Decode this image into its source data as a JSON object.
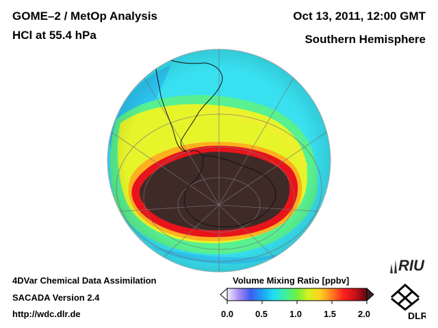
{
  "header": {
    "title_line1": "GOME–2 / MetOp Analysis",
    "title_line2": "HCl at 55.4 hPa",
    "date": "Oct 13, 2011, 12:00 GMT",
    "region": "Southern Hemisphere"
  },
  "footer": {
    "line1": "4DVar Chemical Data Assimilation",
    "line2": "SACADA Version 2.4",
    "line3": "http://wdc.dlr.de"
  },
  "colorbar": {
    "title": "Volume Mixing Ratio [ppbv]",
    "min": 0.0,
    "max": 2.0,
    "ticks": [
      "0.0",
      "0.5",
      "1.0",
      "1.5",
      "2.0"
    ],
    "colors": [
      "#f4f0ff",
      "#a98cf2",
      "#3f5cf2",
      "#1fa0f5",
      "#20e0f0",
      "#40f0a0",
      "#70f040",
      "#d8f020",
      "#ffd020",
      "#ff8020",
      "#ff2020",
      "#c81018",
      "#600810"
    ]
  },
  "map": {
    "projection": "orthographic",
    "hemisphere": "south",
    "vortex_color": "#3e2a27",
    "vortex_edge_color": "#e8141c",
    "collar_color": "#f4f020",
    "background_field_color": "#38e0f0"
  },
  "logos": {
    "riu": "RIU",
    "dlr": "DLR"
  }
}
